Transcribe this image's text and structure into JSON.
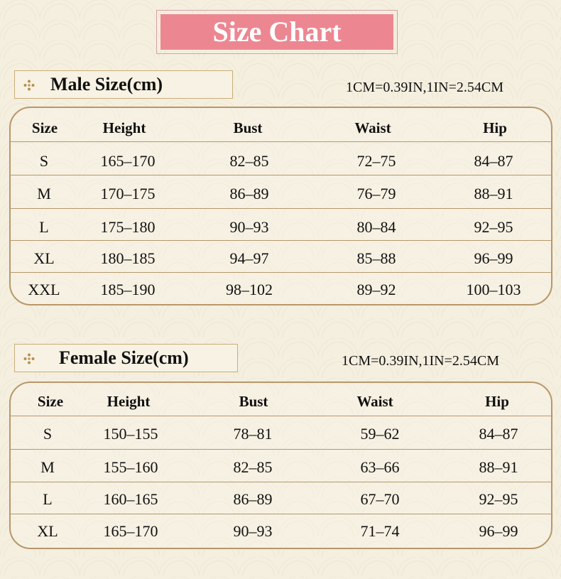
{
  "title": "Size Chart",
  "male": {
    "label": "Male Size(cm)",
    "conversion": "1CM=0.39IN,1IN=2.54CM",
    "headers": [
      "Size",
      "Height",
      "Bust",
      "Waist",
      "Hip"
    ],
    "rows": [
      [
        "S",
        "165–170",
        "82–85",
        "72–75",
        "84–87"
      ],
      [
        "M",
        "170–175",
        "86–89",
        "76–79",
        "88–91"
      ],
      [
        "L",
        "175–180",
        "90–93",
        "80–84",
        "92–95"
      ],
      [
        "XL",
        "180–185",
        "94–97",
        "85–88",
        "96–99"
      ],
      [
        "XXL",
        "185–190",
        "98–102",
        "89–92",
        "100–103"
      ]
    ]
  },
  "female": {
    "label": "Female Size(cm)",
    "conversion": "1CM=0.39IN,1IN=2.54CM",
    "headers": [
      "Size",
      "Height",
      "Bust",
      "Waist",
      "Hip"
    ],
    "rows": [
      [
        "S",
        "150–155",
        "78–81",
        "59–62",
        "84–87"
      ],
      [
        "M",
        "155–160",
        "82–85",
        "63–66",
        "88–91"
      ],
      [
        "L",
        "160–165",
        "86–89",
        "67–70",
        "92–95"
      ],
      [
        "XL",
        "165–170",
        "90–93",
        "71–74",
        "96–99"
      ]
    ]
  },
  "colors": {
    "title_bg": "#ec8791",
    "border": "#b8976a",
    "background": "#f4efdf"
  },
  "icons": {
    "section_marker": "diamond-dots-icon"
  }
}
